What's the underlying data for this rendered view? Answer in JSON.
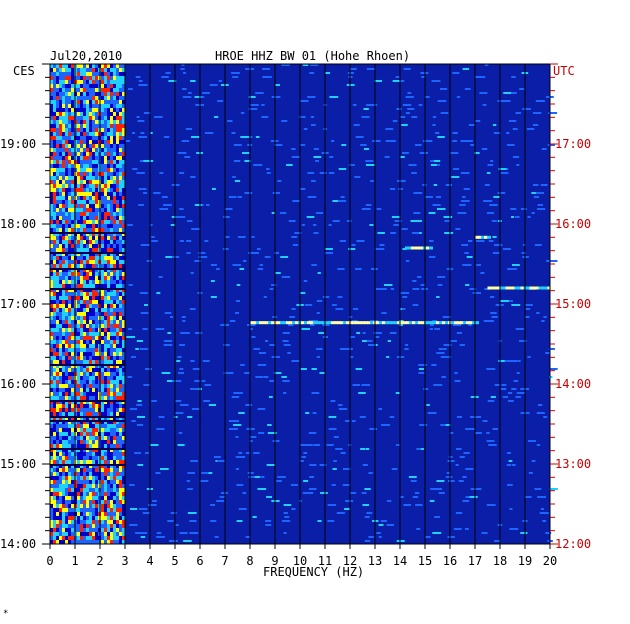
{
  "header": {
    "date": "Jul20,2010",
    "station": "HROE HHZ BW 01 (Hohe Rhoen)",
    "left_zone": "CES",
    "right_zone": "UTC"
  },
  "chart_data": {
    "type": "heatmap",
    "xlabel": "FREQUENCY (HZ)",
    "xlim": [
      0,
      20
    ],
    "x_ticks": [
      "0",
      "1",
      "2",
      "3",
      "4",
      "5",
      "6",
      "7",
      "8",
      "9",
      "10",
      "11",
      "12",
      "13",
      "14",
      "15",
      "16",
      "17",
      "18",
      "19",
      "20"
    ],
    "left_time_ticks": [
      "19:00",
      "18:00",
      "17:00",
      "16:00",
      "15:00",
      "14:00"
    ],
    "right_time_ticks": [
      "17:00",
      "16:00",
      "15:00",
      "14:00",
      "13:00",
      "12:00"
    ],
    "colors": {
      "background": "#0a1ea8",
      "low": "#0000c8",
      "mid": "#1e64ff",
      "high": "#20d0ff",
      "peak": "#ffff00",
      "max": "#ff2000",
      "left_axis": "#000000",
      "right_axis": "#cc0000"
    },
    "notable_lines": [
      {
        "freq_range": [
          8.0,
          17.0
        ],
        "time": "16:46 CES"
      },
      {
        "freq_range": [
          17.5,
          20.0
        ],
        "time": "17:12 CES"
      },
      {
        "freq_range": [
          14.2,
          15.2
        ],
        "time": "17:42 CES"
      },
      {
        "freq_range": [
          17.0,
          17.5
        ],
        "time": "17:50 CES"
      }
    ],
    "energy_band_hz": [
      0,
      3
    ]
  },
  "footnote": "*"
}
